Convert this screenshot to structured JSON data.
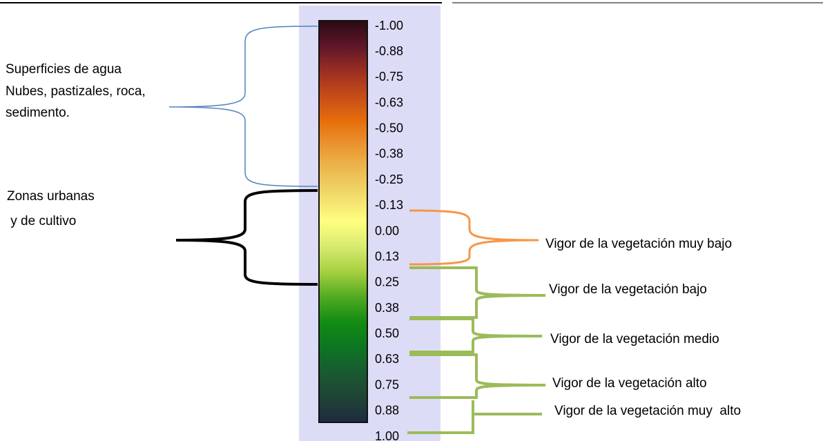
{
  "legend": {
    "labels": [
      "-1.00",
      "-0.88",
      "-0.75",
      "-0.63",
      "-0.50",
      "-0.38",
      "-0.25",
      "-0.13",
      "0.00",
      "0.13",
      "0.25",
      "0.38",
      "0.50",
      "0.63",
      "0.75",
      "0.88",
      "1.00"
    ]
  },
  "left_notes": {
    "water": [
      "Superficies de agua",
      "Nubes, pastizales, roca,",
      "sedimento."
    ],
    "urban": [
      "Zonas urbanas",
      " y de cultivo"
    ]
  },
  "right_notes": [
    "Vigor de la vegetación muy bajo",
    "Vigor de la vegetación bajo",
    "Vigor de la vegetación medio",
    "Vigor de la vegetación alto",
    "Vigor de la vegetación muy  alto"
  ]
}
